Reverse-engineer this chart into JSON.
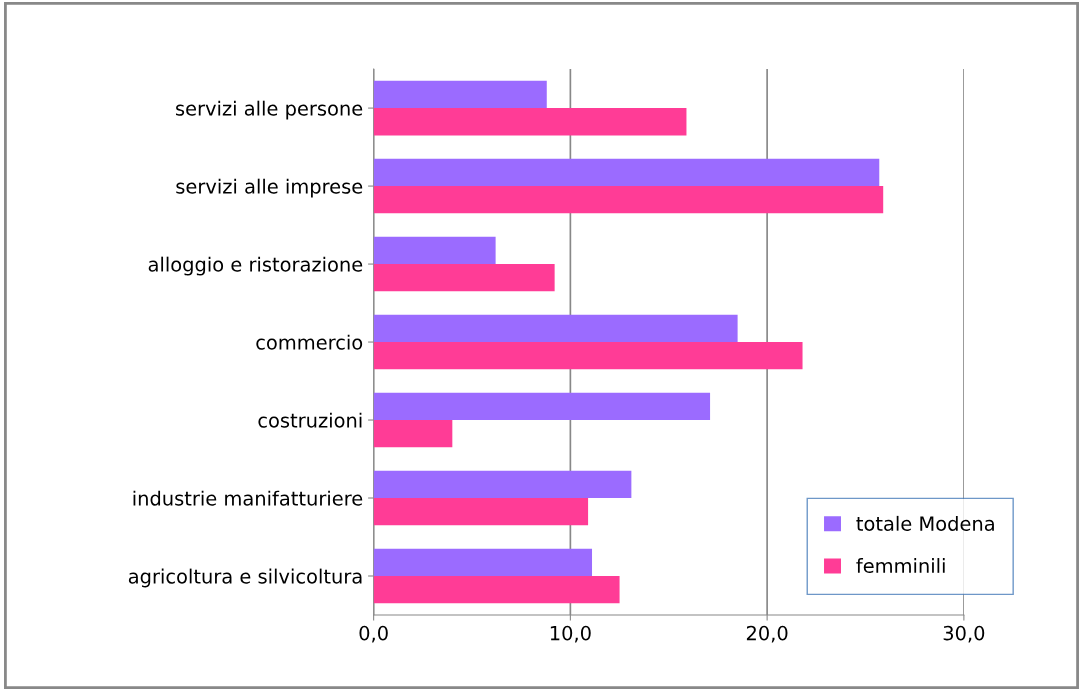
{
  "chart_data": {
    "type": "bar",
    "orientation": "horizontal",
    "categories": [
      "servizi alle persone",
      "servizi alle imprese",
      "alloggio e ristorazione",
      "commercio",
      "costruzioni",
      "industrie manifatturiere",
      "agricoltura e silvicoltura"
    ],
    "series": [
      {
        "name": "totale Modena",
        "color": "#9b6bff",
        "values": [
          8.8,
          25.7,
          6.2,
          18.5,
          17.1,
          13.1,
          11.1
        ]
      },
      {
        "name": "femminili",
        "color": "#ff3c96",
        "values": [
          15.9,
          25.9,
          9.2,
          21.8,
          4.0,
          10.9,
          12.5
        ]
      }
    ],
    "xlim": [
      0,
      30
    ],
    "xticks": [
      {
        "value": 0,
        "label": "0,0"
      },
      {
        "value": 10,
        "label": "10,0"
      },
      {
        "value": 20,
        "label": "20,0"
      },
      {
        "value": 30,
        "label": "30,0"
      }
    ],
    "grid": "x",
    "legend": "bottom right"
  }
}
